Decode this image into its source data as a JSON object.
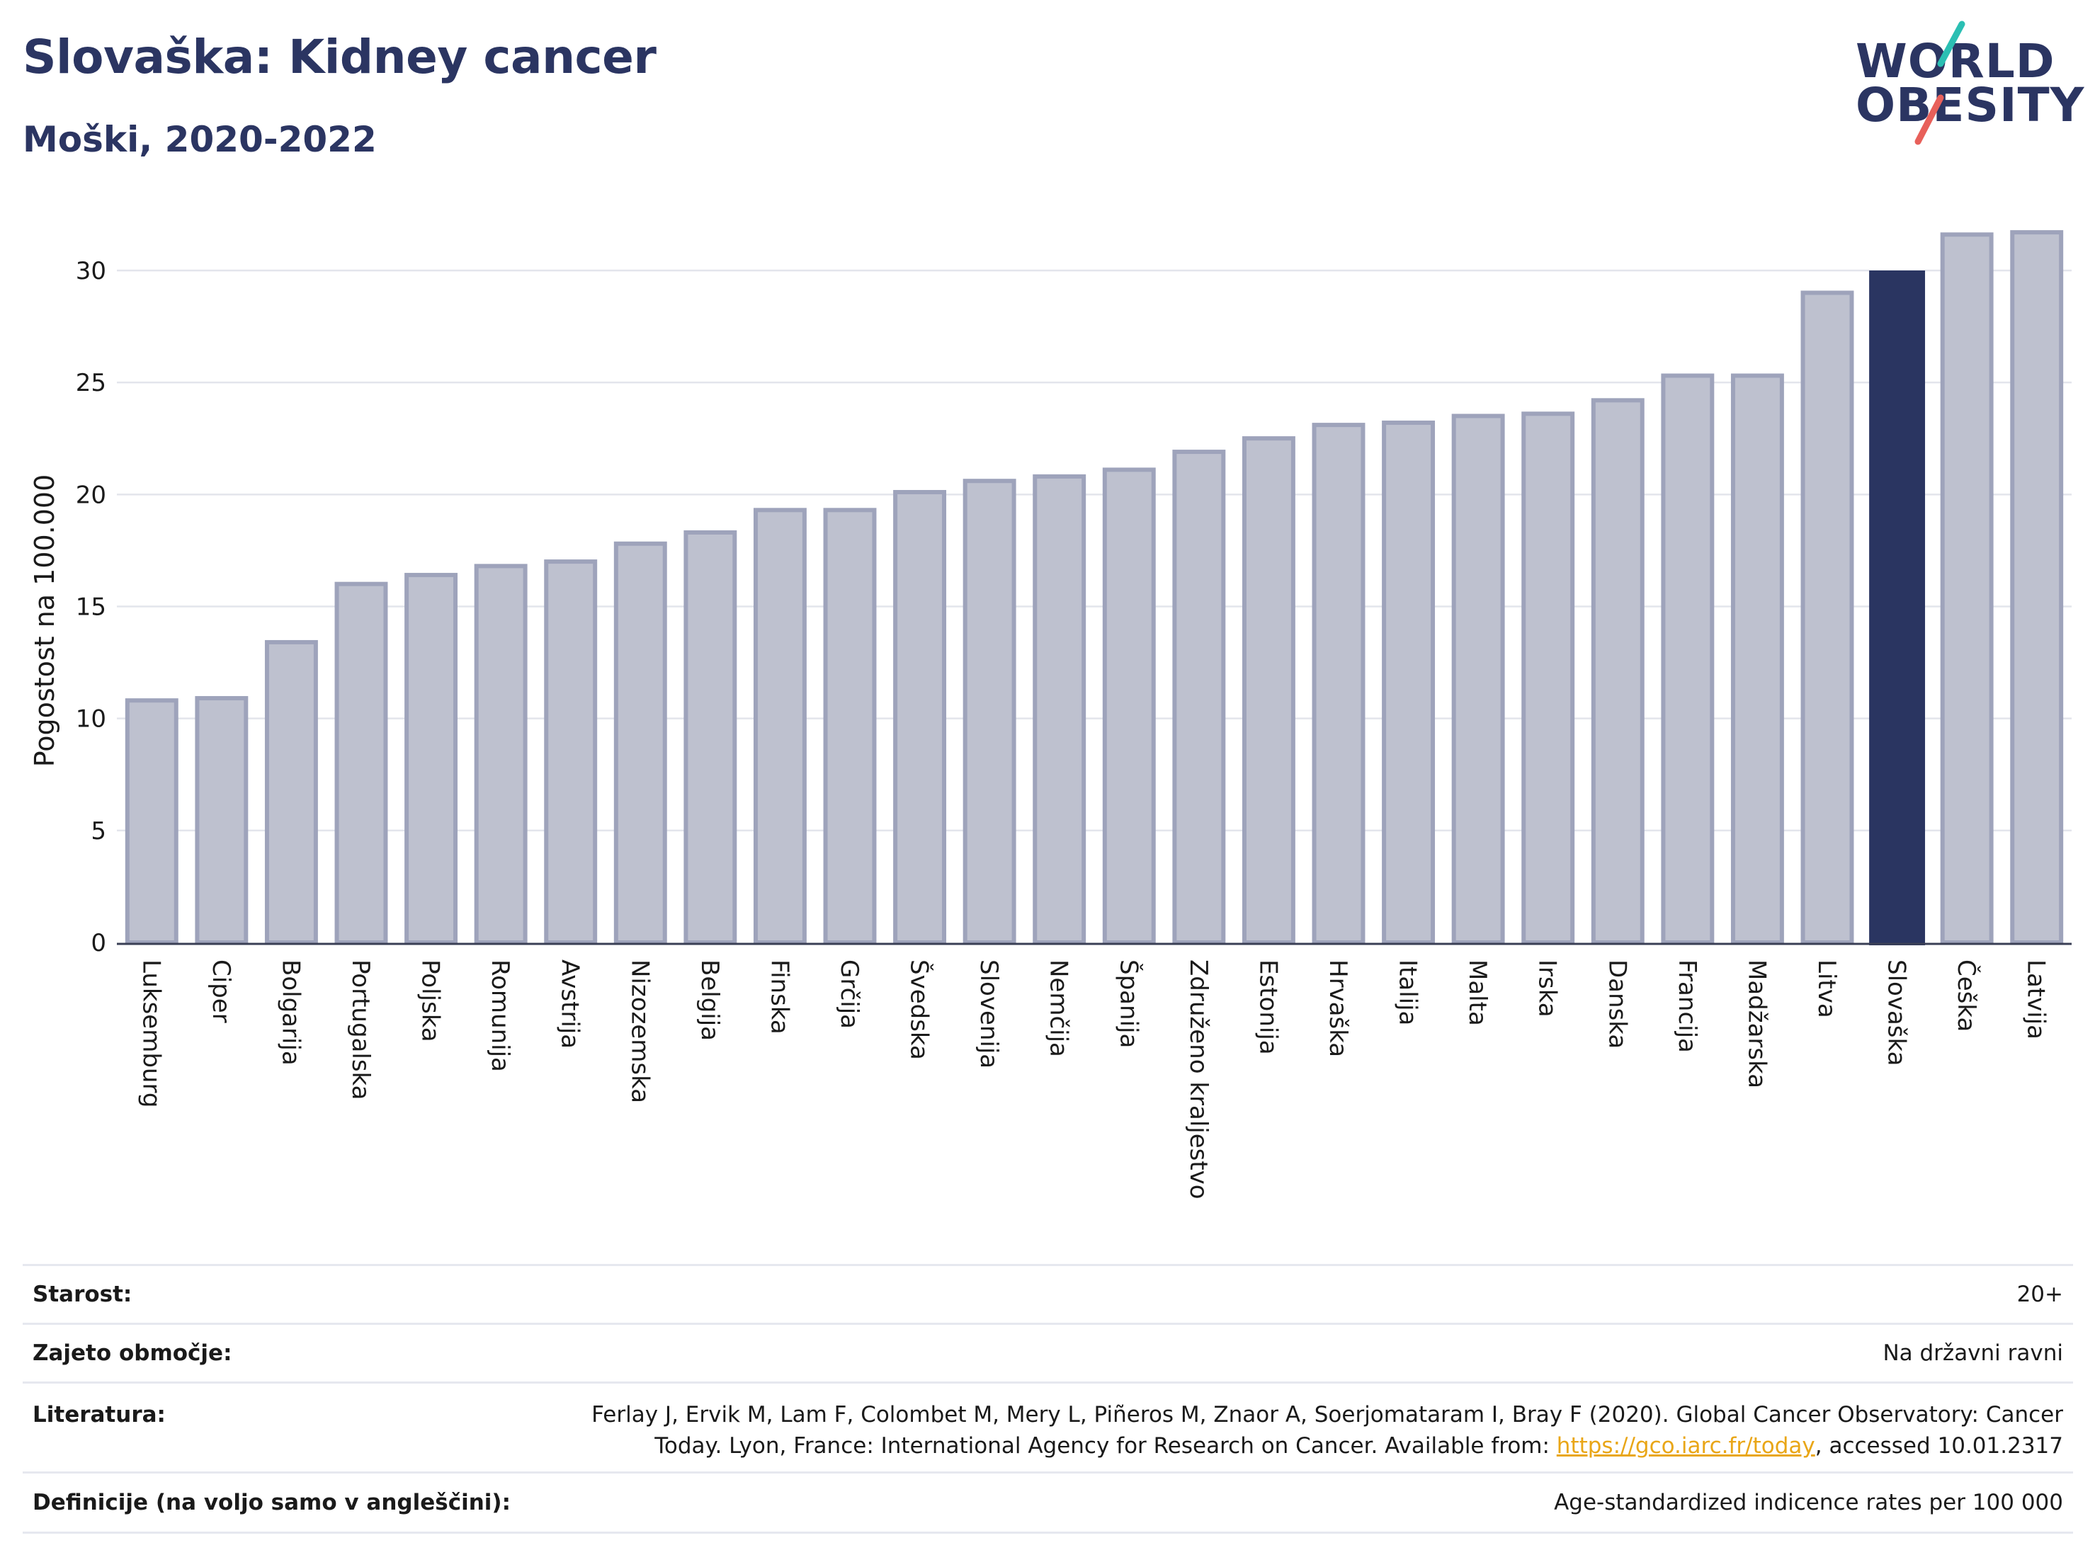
{
  "header": {
    "title": "Slovaška: Kidney cancer",
    "subtitle": "Moški, 2020-2022"
  },
  "logo": {
    "line1": "WORLD",
    "line2": "OBESITY",
    "accent_colors": [
      "#2bbfb3",
      "#e8605a"
    ]
  },
  "chart_data": {
    "type": "bar",
    "ylabel": "Pogostost na 100.000",
    "xlabel": "",
    "ylim": [
      0,
      32
    ],
    "yticks": [
      0,
      5,
      10,
      15,
      20,
      25,
      30
    ],
    "grid": true,
    "categories": [
      "Luksemburg",
      "Ciper",
      "Bolgarija",
      "Portugalska",
      "Poljska",
      "Romunija",
      "Avstrija",
      "Nizozemska",
      "Belgija",
      "Finska",
      "Grčija",
      "Švedska",
      "Slovenija",
      "Nemčija",
      "Španija",
      "Združeno kraljestvo",
      "Estonija",
      "Hrvaška",
      "Italija",
      "Malta",
      "Irska",
      "Danska",
      "Francija",
      "Madžarska",
      "Litva",
      "Slovaška",
      "Češka",
      "Latvija"
    ],
    "values": [
      10.9,
      11.0,
      13.5,
      16.1,
      16.5,
      16.9,
      17.1,
      17.9,
      18.4,
      19.4,
      19.4,
      20.2,
      20.7,
      20.9,
      21.2,
      22.0,
      22.6,
      23.2,
      23.3,
      23.6,
      23.7,
      24.3,
      25.4,
      25.4,
      29.1,
      30.0,
      31.7,
      31.8
    ],
    "highlight": "Slovaška",
    "colors": {
      "bar": "#bec1cf",
      "bar_stroke": "#9ea3bb",
      "highlight": "#2a3561"
    }
  },
  "footer": {
    "rows": [
      {
        "label": "Starost:",
        "value": "20+"
      },
      {
        "label": "Zajeto območje:",
        "value": "Na državni ravni"
      },
      {
        "label": "Literatura:",
        "value_line1": "Ferlay J, Ervik M, Lam F, Colombet M, Mery L, Piñeros M, Znaor A, Soerjomataram I, Bray F (2020). Global Cancer Observatory: Cancer",
        "value_line2_pre": "Today. Lyon, France: International Agency for Research on Cancer. Available from: ",
        "link": "https://gco.iarc.fr/today",
        "value_line2_post": ", accessed 10.01.2317"
      },
      {
        "label": "Definicije (na voljo samo v angleščini):",
        "value": "Age-standardized indicence rates per 100 000"
      }
    ]
  }
}
